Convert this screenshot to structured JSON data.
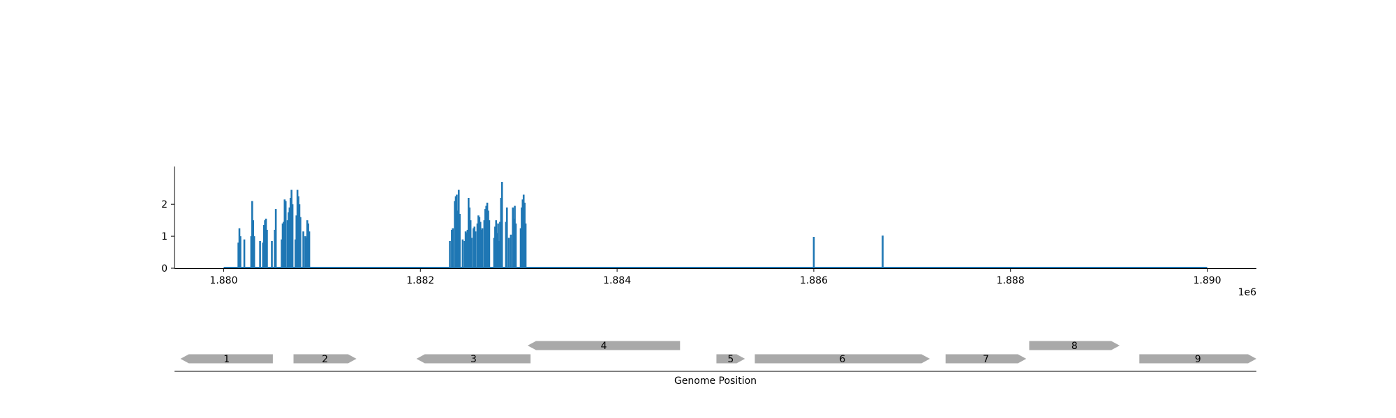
{
  "chart_data": {
    "type": "bar",
    "coverage": {
      "xlim": [
        1879500,
        1890500
      ],
      "ylim": [
        0,
        3.05
      ],
      "x_ticks": [
        1880000,
        1882000,
        1884000,
        1886000,
        1888000,
        1890000
      ],
      "x_tick_labels": [
        "1.880",
        "1.882",
        "1.884",
        "1.886",
        "1.888",
        "1.890"
      ],
      "x_offset_label": "1e6",
      "y_ticks": [
        0,
        1,
        2
      ],
      "y_tick_labels": [
        "0",
        "1",
        "2"
      ],
      "baseline_range": [
        1880000,
        1890000
      ],
      "color": "#1f77b4",
      "points": [
        [
          1880150,
          0.8
        ],
        [
          1880160,
          1.25
        ],
        [
          1880170,
          1.0
        ],
        [
          1880210,
          0.9
        ],
        [
          1880280,
          1.0
        ],
        [
          1880290,
          2.1
        ],
        [
          1880300,
          1.5
        ],
        [
          1880310,
          1.0
        ],
        [
          1880370,
          0.85
        ],
        [
          1880400,
          0.8
        ],
        [
          1880410,
          1.35
        ],
        [
          1880420,
          1.5
        ],
        [
          1880430,
          1.55
        ],
        [
          1880440,
          1.2
        ],
        [
          1880490,
          0.85
        ],
        [
          1880520,
          1.2
        ],
        [
          1880530,
          1.85
        ],
        [
          1880590,
          0.9
        ],
        [
          1880600,
          1.4
        ],
        [
          1880610,
          1.45
        ],
        [
          1880620,
          2.15
        ],
        [
          1880630,
          2.1
        ],
        [
          1880650,
          1.5
        ],
        [
          1880660,
          1.75
        ],
        [
          1880670,
          1.9
        ],
        [
          1880680,
          2.2
        ],
        [
          1880690,
          2.45
        ],
        [
          1880700,
          2.0
        ],
        [
          1880730,
          0.9
        ],
        [
          1880740,
          1.65
        ],
        [
          1880750,
          2.45
        ],
        [
          1880760,
          2.25
        ],
        [
          1880770,
          2.0
        ],
        [
          1880780,
          1.6
        ],
        [
          1880810,
          1.15
        ],
        [
          1880830,
          1.0
        ],
        [
          1880840,
          0.95
        ],
        [
          1880850,
          1.5
        ],
        [
          1880860,
          1.4
        ],
        [
          1880870,
          1.15
        ],
        [
          1882300,
          0.85
        ],
        [
          1882320,
          1.2
        ],
        [
          1882330,
          1.25
        ],
        [
          1882350,
          2.1
        ],
        [
          1882360,
          2.25
        ],
        [
          1882370,
          2.3
        ],
        [
          1882380,
          1.8
        ],
        [
          1882390,
          2.45
        ],
        [
          1882400,
          1.7
        ],
        [
          1882430,
          0.9
        ],
        [
          1882450,
          0.85
        ],
        [
          1882460,
          1.15
        ],
        [
          1882470,
          1.1
        ],
        [
          1882480,
          1.2
        ],
        [
          1882490,
          2.2
        ],
        [
          1882500,
          1.9
        ],
        [
          1882510,
          1.5
        ],
        [
          1882520,
          0.95
        ],
        [
          1882540,
          1.25
        ],
        [
          1882550,
          1.3
        ],
        [
          1882560,
          1.15
        ],
        [
          1882580,
          1.4
        ],
        [
          1882590,
          1.65
        ],
        [
          1882600,
          1.6
        ],
        [
          1882610,
          1.45
        ],
        [
          1882620,
          1.2
        ],
        [
          1882630,
          1.25
        ],
        [
          1882650,
          1.5
        ],
        [
          1882660,
          1.85
        ],
        [
          1882670,
          1.95
        ],
        [
          1882680,
          2.05
        ],
        [
          1882690,
          1.8
        ],
        [
          1882700,
          1.5
        ],
        [
          1882750,
          0.95
        ],
        [
          1882760,
          1.3
        ],
        [
          1882770,
          1.5
        ],
        [
          1882780,
          1.1
        ],
        [
          1882790,
          1.4
        ],
        [
          1882800,
          0.85
        ],
        [
          1882810,
          1.45
        ],
        [
          1882820,
          2.2
        ],
        [
          1882830,
          2.7
        ],
        [
          1882870,
          1.45
        ],
        [
          1882880,
          1.9
        ],
        [
          1882900,
          0.95
        ],
        [
          1882920,
          1.05
        ],
        [
          1882940,
          1.9
        ],
        [
          1882950,
          1.55
        ],
        [
          1882960,
          1.95
        ],
        [
          1882970,
          1.4
        ],
        [
          1883020,
          1.25
        ],
        [
          1883030,
          1.9
        ],
        [
          1883040,
          2.15
        ],
        [
          1883050,
          2.3
        ],
        [
          1883060,
          2.05
        ],
        [
          1883070,
          1.4
        ],
        [
          1886000,
          0.98
        ],
        [
          1886700,
          1.02
        ]
      ]
    },
    "genes": {
      "xlim": [
        1879500,
        1890500
      ],
      "xlabel": "Genome Position",
      "color": "#a9a9a9",
      "items": [
        {
          "label": "1",
          "start": 1879560,
          "end": 1880500,
          "strand": "-",
          "row": 0
        },
        {
          "label": "2",
          "start": 1880710,
          "end": 1881350,
          "strand": "+",
          "row": 0
        },
        {
          "label": "3",
          "start": 1881960,
          "end": 1883120,
          "strand": "-",
          "row": 0
        },
        {
          "label": "4",
          "start": 1883090,
          "end": 1884640,
          "strand": "-",
          "row": 1
        },
        {
          "label": "5",
          "start": 1885010,
          "end": 1885300,
          "strand": "+",
          "row": 0
        },
        {
          "label": "6",
          "start": 1885400,
          "end": 1887180,
          "strand": "+",
          "row": 0
        },
        {
          "label": "7",
          "start": 1887340,
          "end": 1888160,
          "strand": "+",
          "row": 0
        },
        {
          "label": "8",
          "start": 1888190,
          "end": 1889110,
          "strand": "+",
          "row": 1
        },
        {
          "label": "9",
          "start": 1889310,
          "end": 1890500,
          "strand": "+",
          "row": 0
        }
      ]
    }
  }
}
